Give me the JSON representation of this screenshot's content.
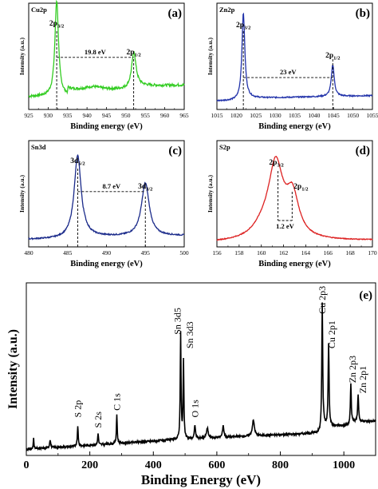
{
  "chart_data": [
    {
      "type": "line",
      "panel": "(a)",
      "element": "Cu2p",
      "color": "#33cc22",
      "xlabel": "Binding energy (eV)",
      "ylabel": "Intensity (a.u.)",
      "xlim": [
        925,
        965
      ],
      "xticks": [
        925,
        930,
        935,
        940,
        945,
        950,
        955,
        960,
        965
      ],
      "peaks": [
        {
          "label": "2p",
          "sub": "3/2",
          "x": 932.2
        },
        {
          "label": "2p",
          "sub": "1/2",
          "x": 952.0
        }
      ],
      "separation": "19.8 eV"
    },
    {
      "type": "line",
      "panel": "(b)",
      "element": "Zn2p",
      "color": "#2233aa",
      "xlabel": "Binding energy (eV)",
      "ylabel": "Intensity (a.u.)",
      "xlim": [
        1015,
        1055
      ],
      "xticks": [
        1015,
        1020,
        1025,
        1030,
        1035,
        1040,
        1045,
        1050,
        1055
      ],
      "peaks": [
        {
          "label": "2p",
          "sub": "3/2",
          "x": 1021.8
        },
        {
          "label": "2p",
          "sub": "1/2",
          "x": 1044.8
        }
      ],
      "separation": "23 eV"
    },
    {
      "type": "line",
      "panel": "(c)",
      "element": "Sn3d",
      "color": "#1a2a8a",
      "xlabel": "Binding energy (eV)",
      "ylabel": "Intensity (a.u.)",
      "xlim": [
        480,
        500
      ],
      "xticks": [
        480,
        485,
        490,
        495,
        500
      ],
      "peaks": [
        {
          "label": "3d",
          "sub": "5/2",
          "x": 486.3
        },
        {
          "label": "3d",
          "sub": "3/2",
          "x": 495.0
        }
      ],
      "separation": "8.7 eV"
    },
    {
      "type": "line",
      "panel": "(d)",
      "element": "S2p",
      "color": "#dd2222",
      "xlabel": "Binding energy (eV)",
      "ylabel": "Intensity (a.u.)",
      "xlim": [
        156,
        170
      ],
      "xticks": [
        156,
        158,
        160,
        162,
        164,
        166,
        168,
        170
      ],
      "peaks": [
        {
          "label": "2p",
          "sub": "3/2",
          "x": 161.5
        },
        {
          "label": "2p",
          "sub": "1/2",
          "x": 162.7
        }
      ],
      "separation": "1.2 eV"
    },
    {
      "type": "line",
      "panel": "(e)",
      "color": "#000000",
      "xlabel": "Binding Energy (eV)",
      "ylabel": "Intensity (a.u.)",
      "xlim": [
        0,
        1100
      ],
      "xticks": [
        0,
        200,
        400,
        600,
        800,
        1000
      ],
      "peak_labels": [
        {
          "text": "S 2p",
          "x": 162
        },
        {
          "text": "S 2s",
          "x": 226
        },
        {
          "text": "C 1s",
          "x": 285
        },
        {
          "text": "Sn 3d5",
          "x": 486
        },
        {
          "text": "Sn 3d3",
          "x": 495
        },
        {
          "text": "O 1s",
          "x": 531
        },
        {
          "text": "Cu 2p3",
          "x": 932
        },
        {
          "text": "Cu 2p1",
          "x": 952
        },
        {
          "text": "Zn 2p3",
          "x": 1022
        },
        {
          "text": "Zn 2p1",
          "x": 1045
        }
      ]
    }
  ]
}
